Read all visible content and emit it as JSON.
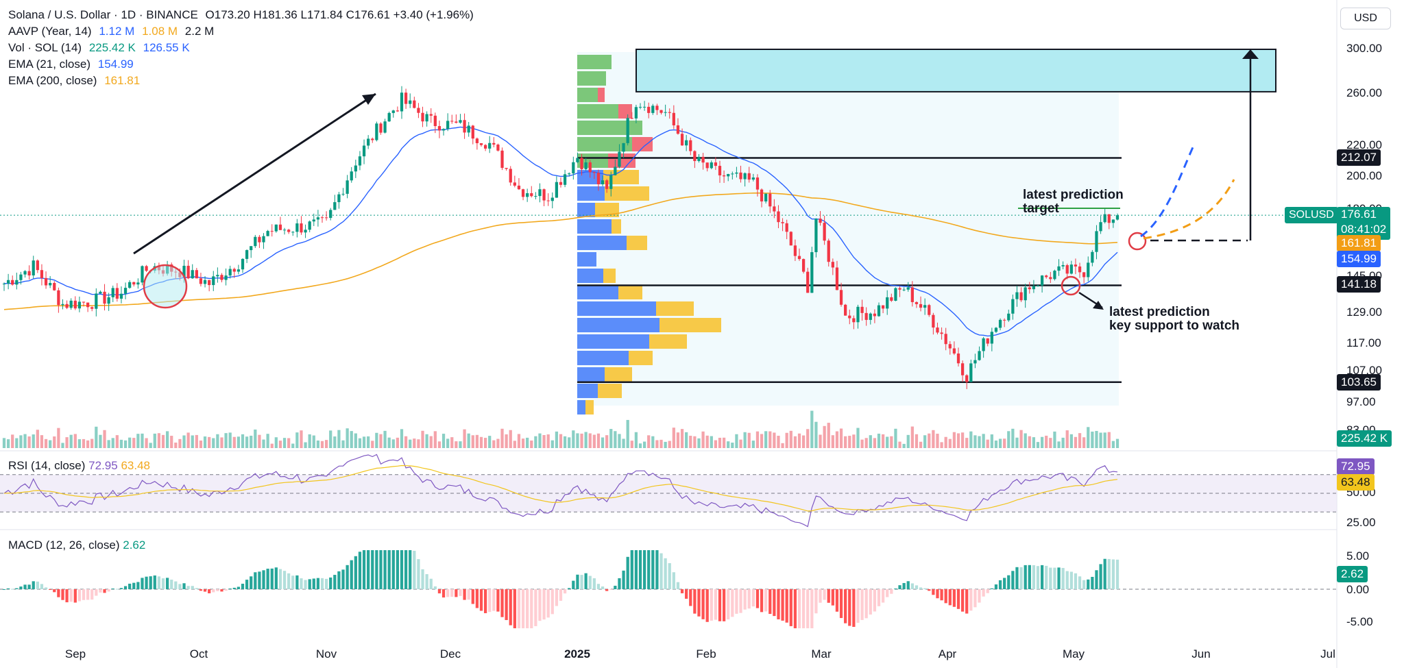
{
  "header": {
    "symbol": "Solana / U.S. Dollar · 1D · BINANCE",
    "ohlc": "O173.20  H181.36  L171.84  C176.61  +3.40 (+1.96%)",
    "indicators": [
      {
        "label": "AAVP (Year, 14)",
        "values": [
          "1.12 M",
          "1.08 M",
          "2.2 M"
        ],
        "colors": [
          "#2962ff",
          "#f2a81d",
          "#131722"
        ]
      },
      {
        "label": "Vol · SOL (14)",
        "values": [
          "225.42 K",
          "126.55 K"
        ],
        "colors": [
          "#089981",
          "#2962ff"
        ]
      },
      {
        "label": "EMA (21, close)",
        "values": [
          "154.99"
        ],
        "colors": [
          "#2962ff"
        ]
      },
      {
        "label": "EMA (200, close)",
        "values": [
          "161.81"
        ],
        "colors": [
          "#f2a81d"
        ]
      }
    ]
  },
  "currency": "USD",
  "price_axis": [
    "300.00",
    "260.00",
    "220.00",
    "200.00",
    "180.00",
    "145.00",
    "129.00",
    "117.00",
    "107.00",
    "97.00",
    "83.00"
  ],
  "price_tags": [
    {
      "value": "212.07",
      "bg": "#131722"
    },
    {
      "value": "176.61",
      "sub": "08:41:02",
      "bg": "#089981"
    },
    {
      "value": "161.81",
      "bg": "#f29d15"
    },
    {
      "value": "154.99",
      "bg": "#2962ff"
    },
    {
      "value": "141.18",
      "bg": "#131722"
    },
    {
      "value": "103.65",
      "bg": "#131722"
    },
    {
      "value": "225.42 K",
      "bg": "#089981"
    }
  ],
  "pair_tag": "SOLUSD",
  "rsi": {
    "title": "RSI (14, close)",
    "value1": "72.95",
    "value2": "63.48",
    "axis": [
      "50.00",
      "25.00"
    ],
    "tag1": "72.95",
    "tag2": "63.48"
  },
  "macd": {
    "title": "MACD (12, 26, close)",
    "value": "2.62",
    "axis": [
      "5.00",
      "0.00",
      "-5.00"
    ],
    "tag": "2.62"
  },
  "time_axis": [
    "Sep",
    "Oct",
    "Nov",
    "Dec",
    "2025",
    "Feb",
    "Mar",
    "Apr",
    "May",
    "Jun",
    "Jul"
  ],
  "annotations": {
    "target_line1": "latest prediction",
    "target_line2": "target",
    "support_line1": "latest prediction",
    "support_line2": "key support to watch"
  },
  "colors": {
    "up": "#089981",
    "down": "#f23645",
    "ema21": "#2962ff",
    "ema200": "#f2a81d",
    "rsi": "#7e57c2",
    "zone": "#b2ebf2"
  },
  "chart_data": {
    "type": "candlestick",
    "price_scale": "log",
    "levels": [
      212.07,
      141.18,
      103.65
    ],
    "target_zone": [
      262,
      300
    ],
    "price_series": [
      {
        "date": "2024-08-20",
        "price": 142
      },
      {
        "date": "2024-08-27",
        "price": 150
      },
      {
        "date": "2024-09-03",
        "price": 133
      },
      {
        "date": "2024-09-10",
        "price": 134
      },
      {
        "date": "2024-09-17",
        "price": 138
      },
      {
        "date": "2024-09-24",
        "price": 150
      },
      {
        "date": "2024-10-01",
        "price": 148
      },
      {
        "date": "2024-10-08",
        "price": 142
      },
      {
        "date": "2024-10-15",
        "price": 152
      },
      {
        "date": "2024-10-22",
        "price": 168
      },
      {
        "date": "2024-10-29",
        "price": 170
      },
      {
        "date": "2024-11-05",
        "price": 172
      },
      {
        "date": "2024-11-12",
        "price": 210
      },
      {
        "date": "2024-11-19",
        "price": 240
      },
      {
        "date": "2024-11-23",
        "price": 255
      },
      {
        "date": "2024-11-30",
        "price": 238
      },
      {
        "date": "2024-12-07",
        "price": 235
      },
      {
        "date": "2024-12-14",
        "price": 222
      },
      {
        "date": "2024-12-21",
        "price": 192
      },
      {
        "date": "2024-12-28",
        "price": 188
      },
      {
        "date": "2025-01-04",
        "price": 213
      },
      {
        "date": "2025-01-11",
        "price": 190
      },
      {
        "date": "2025-01-18",
        "price": 255
      },
      {
        "date": "2025-01-25",
        "price": 245
      },
      {
        "date": "2025-02-01",
        "price": 210
      },
      {
        "date": "2025-02-08",
        "price": 200
      },
      {
        "date": "2025-02-15",
        "price": 196
      },
      {
        "date": "2025-02-22",
        "price": 170
      },
      {
        "date": "2025-02-28",
        "price": 141
      },
      {
        "date": "2025-03-02",
        "price": 175
      },
      {
        "date": "2025-03-09",
        "price": 128
      },
      {
        "date": "2025-03-16",
        "price": 130
      },
      {
        "date": "2025-03-23",
        "price": 140
      },
      {
        "date": "2025-03-30",
        "price": 126
      },
      {
        "date": "2025-04-07",
        "price": 106
      },
      {
        "date": "2025-04-14",
        "price": 125
      },
      {
        "date": "2025-04-21",
        "price": 140
      },
      {
        "date": "2025-04-28",
        "price": 147
      },
      {
        "date": "2025-05-05",
        "price": 148
      },
      {
        "date": "2025-05-09",
        "price": 172
      },
      {
        "date": "2025-05-13",
        "price": 176.61
      }
    ],
    "ema21_current": 154.99,
    "ema200_current": 161.81,
    "volume_current": "225.42 K",
    "rsi_current": 72.95,
    "rsi_ma_current": 63.48,
    "macd_current": 2.62
  }
}
